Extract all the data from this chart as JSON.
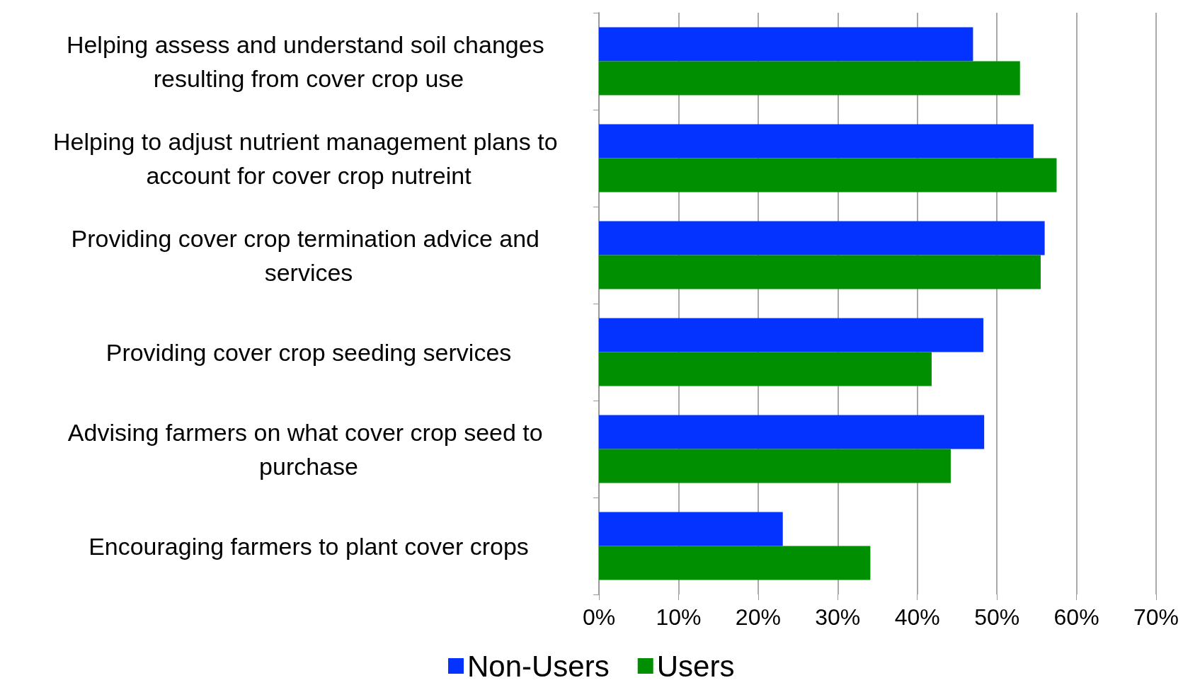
{
  "chart_data": {
    "type": "bar",
    "orientation": "horizontal",
    "categories": [
      "Helping assess and understand soil changes resulting from cover crop use",
      "Helping to adjust nutrient management plans to account for cover crop nutreint",
      "Providing cover crop termination advice and services",
      "Providing cover crop seeding services",
      "Advising farmers on what cover crop seed to purchase",
      "Encouraging farmers to plant cover crops"
    ],
    "series": [
      {
        "name": "Non-Users",
        "color": "#0433ff",
        "values": [
          47.0,
          54.6,
          56.0,
          48.3,
          48.4,
          23.1
        ]
      },
      {
        "name": "Users",
        "color": "#008f00",
        "values": [
          52.9,
          57.5,
          55.5,
          41.8,
          44.2,
          34.1
        ]
      }
    ],
    "xlim": [
      0,
      70
    ],
    "xticks": [
      {
        "value": 0,
        "label": "0%"
      },
      {
        "value": 10,
        "label": "10%"
      },
      {
        "value": 20,
        "label": "20%"
      },
      {
        "value": 30,
        "label": "30%"
      },
      {
        "value": 40,
        "label": "40%"
      },
      {
        "value": 50,
        "label": "50%"
      },
      {
        "value": 60,
        "label": "60%"
      },
      {
        "value": 70,
        "label": "70%"
      }
    ],
    "grid": "x",
    "legend": "bottom"
  }
}
